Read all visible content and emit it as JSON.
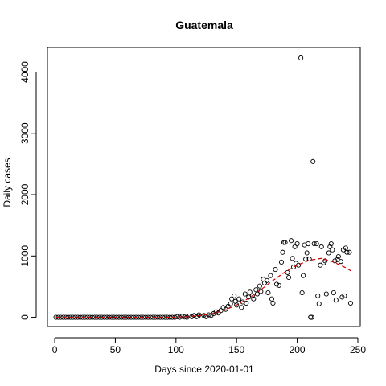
{
  "chart_data": {
    "type": "scatter",
    "title": "Guatemala",
    "xlabel": "Days since 2020-01-01",
    "ylabel": "Daily cases",
    "xlim": [
      -6,
      252
    ],
    "ylim": [
      -150,
      4400
    ],
    "xticks": [
      0,
      50,
      100,
      150,
      200,
      250
    ],
    "yticks": [
      0,
      1000,
      2000,
      3000,
      4000
    ],
    "grid": false,
    "legend": "none",
    "trend_color": "#cc0000",
    "points": [
      [
        1,
        0
      ],
      [
        3,
        0
      ],
      [
        5,
        0
      ],
      [
        7,
        0
      ],
      [
        9,
        0
      ],
      [
        11,
        0
      ],
      [
        13,
        0
      ],
      [
        15,
        0
      ],
      [
        17,
        0
      ],
      [
        19,
        0
      ],
      [
        21,
        0
      ],
      [
        23,
        0
      ],
      [
        25,
        0
      ],
      [
        27,
        0
      ],
      [
        29,
        0
      ],
      [
        31,
        0
      ],
      [
        33,
        0
      ],
      [
        35,
        0
      ],
      [
        37,
        0
      ],
      [
        39,
        0
      ],
      [
        41,
        0
      ],
      [
        43,
        0
      ],
      [
        45,
        0
      ],
      [
        47,
        0
      ],
      [
        49,
        0
      ],
      [
        51,
        0
      ],
      [
        53,
        0
      ],
      [
        55,
        0
      ],
      [
        57,
        0
      ],
      [
        59,
        0
      ],
      [
        61,
        0
      ],
      [
        63,
        0
      ],
      [
        65,
        0
      ],
      [
        67,
        0
      ],
      [
        69,
        0
      ],
      [
        71,
        0
      ],
      [
        73,
        0
      ],
      [
        75,
        0
      ],
      [
        77,
        0
      ],
      [
        79,
        0
      ],
      [
        81,
        0
      ],
      [
        83,
        0
      ],
      [
        85,
        0
      ],
      [
        87,
        0
      ],
      [
        89,
        0
      ],
      [
        91,
        0
      ],
      [
        93,
        0
      ],
      [
        95,
        0
      ],
      [
        97,
        0
      ],
      [
        99,
        0
      ],
      [
        101,
        10
      ],
      [
        103,
        0
      ],
      [
        105,
        15
      ],
      [
        107,
        5
      ],
      [
        109,
        0
      ],
      [
        111,
        20
      ],
      [
        113,
        10
      ],
      [
        115,
        30
      ],
      [
        117,
        10
      ],
      [
        119,
        40
      ],
      [
        121,
        20
      ],
      [
        123,
        30
      ],
      [
        125,
        10
      ],
      [
        127,
        40
      ],
      [
        129,
        30
      ],
      [
        131,
        60
      ],
      [
        133,
        90
      ],
      [
        135,
        70
      ],
      [
        137,
        110
      ],
      [
        139,
        160
      ],
      [
        141,
        130
      ],
      [
        143,
        180
      ],
      [
        145,
        220
      ],
      [
        146,
        300
      ],
      [
        148,
        350
      ],
      [
        149,
        260
      ],
      [
        150,
        200
      ],
      [
        152,
        300
      ],
      [
        154,
        160
      ],
      [
        155,
        250
      ],
      [
        157,
        380
      ],
      [
        158,
        230
      ],
      [
        160,
        330
      ],
      [
        161,
        410
      ],
      [
        163,
        350
      ],
      [
        164,
        300
      ],
      [
        166,
        450
      ],
      [
        167,
        380
      ],
      [
        169,
        510
      ],
      [
        170,
        420
      ],
      [
        172,
        620
      ],
      [
        173,
        560
      ],
      [
        175,
        600
      ],
      [
        176,
        400
      ],
      [
        178,
        680
      ],
      [
        179,
        300
      ],
      [
        180,
        230
      ],
      [
        182,
        780
      ],
      [
        183,
        540
      ],
      [
        185,
        520
      ],
      [
        187,
        900
      ],
      [
        188,
        1060
      ],
      [
        189,
        1220
      ],
      [
        190,
        1220
      ],
      [
        192,
        730
      ],
      [
        193,
        650
      ],
      [
        195,
        1250
      ],
      [
        196,
        960
      ],
      [
        197,
        820
      ],
      [
        198,
        1150
      ],
      [
        199,
        880
      ],
      [
        200,
        1200
      ],
      [
        201,
        850
      ],
      [
        203,
        4230
      ],
      [
        204,
        400
      ],
      [
        205,
        680
      ],
      [
        206,
        1180
      ],
      [
        207,
        950
      ],
      [
        208,
        1050
      ],
      [
        209,
        1200
      ],
      [
        210,
        950
      ],
      [
        211,
        0
      ],
      [
        212,
        0
      ],
      [
        213,
        2540
      ],
      [
        214,
        1200
      ],
      [
        216,
        1200
      ],
      [
        217,
        350
      ],
      [
        218,
        220
      ],
      [
        219,
        850
      ],
      [
        220,
        1150
      ],
      [
        222,
        890
      ],
      [
        223,
        920
      ],
      [
        224,
        380
      ],
      [
        226,
        1050
      ],
      [
        227,
        1150
      ],
      [
        228,
        1200
      ],
      [
        229,
        1100
      ],
      [
        230,
        400
      ],
      [
        231,
        920
      ],
      [
        232,
        280
      ],
      [
        233,
        940
      ],
      [
        234,
        990
      ],
      [
        236,
        910
      ],
      [
        237,
        330
      ],
      [
        238,
        1100
      ],
      [
        239,
        350
      ],
      [
        240,
        1130
      ],
      [
        241,
        1060
      ],
      [
        243,
        1060
      ],
      [
        244,
        230
      ]
    ],
    "trend": [
      [
        1,
        0
      ],
      [
        50,
        0
      ],
      [
        90,
        0
      ],
      [
        100,
        2
      ],
      [
        110,
        12
      ],
      [
        120,
        28
      ],
      [
        130,
        60
      ],
      [
        140,
        115
      ],
      [
        150,
        200
      ],
      [
        160,
        310
      ],
      [
        170,
        450
      ],
      [
        180,
        600
      ],
      [
        190,
        740
      ],
      [
        200,
        850
      ],
      [
        210,
        930
      ],
      [
        220,
        960
      ],
      [
        230,
        900
      ],
      [
        240,
        810
      ],
      [
        245,
        750
      ]
    ]
  }
}
